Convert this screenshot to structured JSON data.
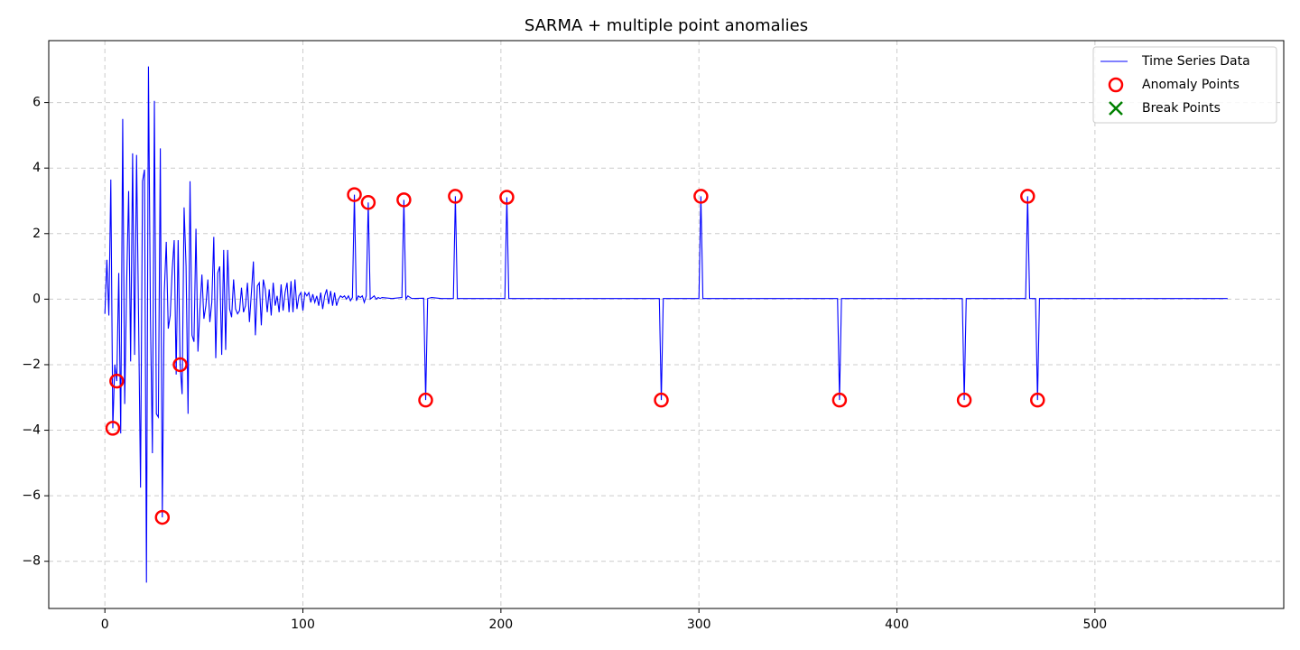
{
  "chart_data": {
    "type": "line",
    "title": "SARMA + multiple point anomalies",
    "xlim": [
      -28.35,
      595.35
    ],
    "ylim": [
      -9.44,
      7.89
    ],
    "xticks": [
      0,
      100,
      200,
      300,
      400,
      500
    ],
    "yticks": [
      {
        "value": -8,
        "label": "−8"
      },
      {
        "value": -6,
        "label": "−6"
      },
      {
        "value": -4,
        "label": "−4"
      },
      {
        "value": -2,
        "label": "−2"
      },
      0,
      2,
      4,
      6
    ],
    "grid": true,
    "legend": "upper right",
    "series": [
      {
        "name": "Time Series Data",
        "type": "line",
        "color": "#0000ff",
        "x": [
          0,
          1,
          2,
          3,
          4,
          5,
          6,
          7,
          8,
          9,
          10,
          11,
          12,
          13,
          14,
          15,
          16,
          17,
          18,
          19,
          20,
          21,
          22,
          23,
          24,
          25,
          26,
          27,
          28,
          29,
          30,
          31,
          32,
          33,
          34,
          35,
          36,
          37,
          38,
          39,
          40,
          41,
          42,
          43,
          44,
          45,
          46,
          47,
          48,
          49,
          50,
          51,
          52,
          53,
          54,
          55,
          56,
          57,
          58,
          59,
          60,
          61,
          62,
          63,
          64,
          65,
          66,
          67,
          68,
          69,
          70,
          71,
          72,
          73,
          74,
          75,
          76,
          77,
          78,
          79,
          80,
          81,
          82,
          83,
          84,
          85,
          86,
          87,
          88,
          89,
          90,
          91,
          92,
          93,
          94,
          95,
          96,
          97,
          98,
          99,
          100,
          101,
          102,
          103,
          104,
          105,
          106,
          107,
          108,
          109,
          110,
          111,
          112,
          113,
          114,
          115,
          116,
          117,
          118,
          119,
          120,
          121,
          122,
          123,
          124,
          125,
          126,
          127,
          128,
          129,
          130,
          131,
          132,
          133,
          134,
          135,
          136,
          137,
          138,
          139,
          140,
          145,
          150,
          151,
          152,
          153,
          155,
          161,
          162,
          163,
          165,
          170,
          176,
          177,
          178,
          202,
          203,
          204,
          280,
          281,
          282,
          300,
          301,
          302,
          370,
          371,
          372,
          433,
          434,
          435,
          465,
          466,
          467,
          470,
          471,
          472,
          567
        ],
        "values": [
          -0.45,
          1.2,
          -0.5,
          3.65,
          -3.94,
          -2.0,
          -2.5,
          0.8,
          -4.1,
          5.5,
          -3.2,
          0.5,
          3.3,
          -1.9,
          4.45,
          -1.7,
          4.4,
          -0.5,
          -5.75,
          3.6,
          3.95,
          -8.65,
          7.1,
          -0.5,
          -4.7,
          6.05,
          -3.5,
          -3.6,
          4.6,
          -6.66,
          0.2,
          1.75,
          -0.9,
          -0.5,
          0.9,
          1.8,
          -2.3,
          1.8,
          -2.0,
          -2.9,
          2.8,
          1.0,
          -3.5,
          3.6,
          -1.1,
          -1.3,
          2.15,
          -1.6,
          -0.3,
          0.75,
          -0.6,
          -0.2,
          0.6,
          -0.7,
          -0.1,
          1.9,
          -1.8,
          0.8,
          1.0,
          -1.7,
          1.5,
          -1.55,
          1.5,
          -0.3,
          -0.55,
          0.6,
          -0.3,
          -0.45,
          -0.35,
          0.35,
          -0.4,
          -0.2,
          0.5,
          -0.7,
          0.2,
          1.15,
          -1.1,
          0.4,
          0.5,
          -0.8,
          0.6,
          0.3,
          -0.4,
          0.3,
          -0.5,
          0.5,
          -0.2,
          0.1,
          -0.4,
          0.45,
          -0.35,
          0.2,
          0.5,
          -0.4,
          0.55,
          -0.4,
          0.6,
          -0.3,
          0.1,
          0.2,
          -0.35,
          0.2,
          0.1,
          0.2,
          -0.1,
          0.15,
          -0.1,
          0.1,
          -0.2,
          0.2,
          -0.3,
          0.1,
          0.3,
          -0.15,
          0.25,
          -0.2,
          0.2,
          -0.2,
          0.0,
          0.1,
          0.05,
          0.1,
          0.0,
          0.1,
          -0.05,
          0.05,
          3.19,
          -0.05,
          0.1,
          0.05,
          0.1,
          -0.1,
          0.1,
          2.95,
          0.0,
          0.05,
          0.1,
          0.0,
          0.05,
          0.02,
          0.05,
          0.02,
          0.05,
          3.03,
          0.0,
          0.1,
          0.02,
          0.03,
          -3.08,
          0.02,
          0.05,
          0.02,
          0.02,
          3.14,
          0.02,
          0.02,
          3.11,
          0.02,
          0.02,
          -3.08,
          0.02,
          0.02,
          3.14,
          0.02,
          0.02,
          -3.08,
          0.02,
          0.02,
          -3.08,
          0.02,
          0.02,
          3.14,
          0.02,
          0.02,
          -3.08,
          0.02,
          0.02
        ]
      },
      {
        "name": "Anomaly Points",
        "type": "scatter",
        "marker": "circle",
        "color": "#ff0000",
        "x": [
          4,
          6,
          29,
          38,
          126,
          133,
          151,
          162,
          177,
          203,
          281,
          301,
          371,
          434,
          466,
          471
        ],
        "values": [
          -3.94,
          -2.5,
          -6.66,
          -2.0,
          3.19,
          2.95,
          3.03,
          -3.08,
          3.14,
          3.11,
          -3.08,
          3.14,
          -3.08,
          -3.08,
          3.14,
          -3.08
        ]
      },
      {
        "name": "Break Points",
        "type": "scatter",
        "marker": "x",
        "color": "#008000",
        "x": [],
        "values": []
      }
    ]
  }
}
